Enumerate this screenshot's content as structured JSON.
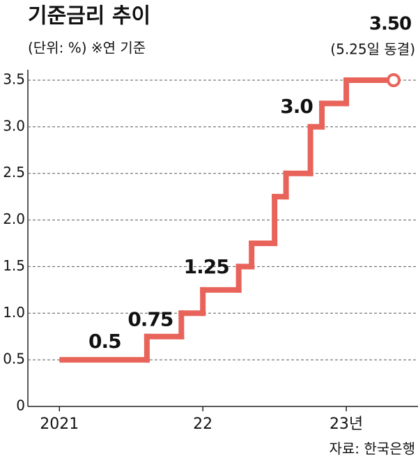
{
  "chart_data": {
    "type": "step",
    "title": "기준금리 추이",
    "subtitle": "(단위: %) ※연 기준",
    "annotation": "(5.25일 동결)",
    "source": "자료: 한국은행",
    "x": [
      2021,
      2021.61,
      2021.85,
      2022.0,
      2022.25,
      2022.34,
      2022.5,
      2022.58,
      2022.75,
      2022.83,
      2023.0,
      2023.33
    ],
    "values": [
      0.5,
      0.75,
      1.0,
      1.25,
      1.5,
      1.75,
      2.25,
      2.5,
      3.0,
      3.25,
      3.5,
      3.5
    ],
    "value_labels": [
      "0.5",
      "0.75",
      null,
      "1.25",
      null,
      null,
      null,
      null,
      "3.0",
      null,
      null,
      "3.50"
    ],
    "color": "#e8645a",
    "xlim": [
      2020.78,
      2023.5
    ],
    "xticks": [
      2021,
      {
        "value": 2022,
        "label": "22"
      },
      {
        "value": 2023,
        "label": "23년"
      }
    ],
    "ylim": [
      0,
      3.5
    ],
    "yticks": [
      0,
      0.5,
      {
        "value": 1,
        "label": "1.0"
      },
      1.5,
      {
        "value": 2,
        "label": "2.0"
      },
      2.5,
      {
        "value": 3,
        "label": "3.0"
      },
      3.5
    ],
    "grid": true
  }
}
